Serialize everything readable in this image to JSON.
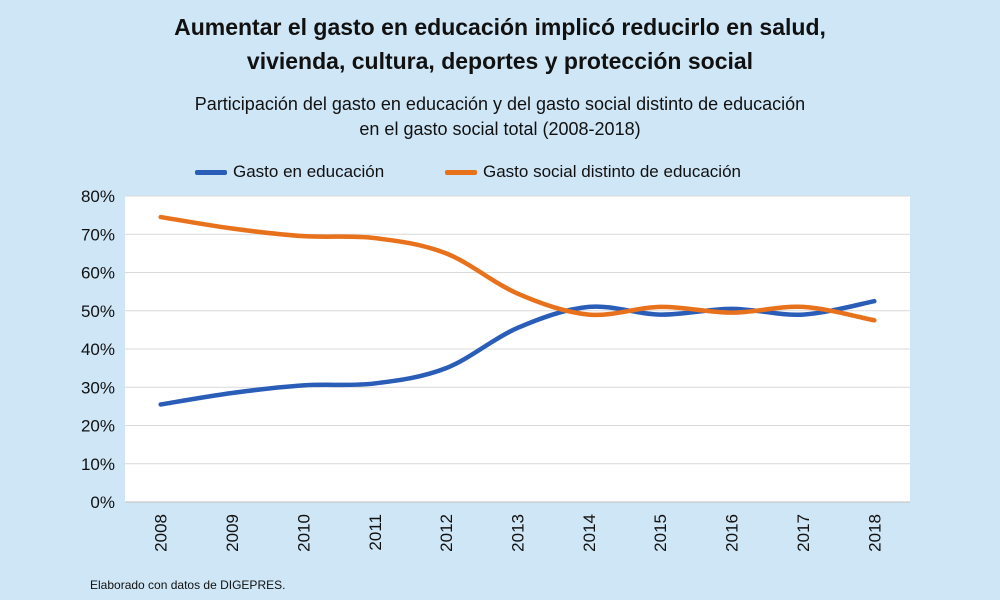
{
  "title_lines": [
    "Aumentar el gasto en educación implicó reducirlo en salud,",
    "vivienda, cultura, deportes y protección social"
  ],
  "subtitle_lines": [
    "Participación del gasto en educación y del gasto social distinto de educación",
    "en el gasto social total (2008-2018)"
  ],
  "source": "Elaborado con datos de DIGEPRES.",
  "chart_data": {
    "type": "line",
    "title": "Aumentar el gasto en educación implicó reducirlo en salud, vivienda, cultura, deportes y protección social",
    "subtitle": "Participación del gasto en educación y del gasto social distinto de educación en el gasto social total (2008-2018)",
    "categories": [
      "2008",
      "2009",
      "2010",
      "2011",
      "2012",
      "2013",
      "2014",
      "2015",
      "2016",
      "2017",
      "2018"
    ],
    "series": [
      {
        "name": "Gasto en educación",
        "color": "#2a5db8",
        "values": [
          25.5,
          28.5,
          30.5,
          31,
          35,
          45.5,
          51,
          49,
          50.5,
          49,
          52.5
        ]
      },
      {
        "name": "Gasto social distinto de educación",
        "color": "#e8711c",
        "values": [
          74.5,
          71.5,
          69.5,
          69,
          65,
          54.5,
          49,
          51,
          49.5,
          51,
          47.5
        ]
      }
    ],
    "y_ticks": [
      "0%",
      "10%",
      "20%",
      "30%",
      "40%",
      "50%",
      "60%",
      "70%",
      "80%"
    ],
    "ylim": [
      0,
      80
    ],
    "grid": true,
    "legend_position": "top"
  }
}
